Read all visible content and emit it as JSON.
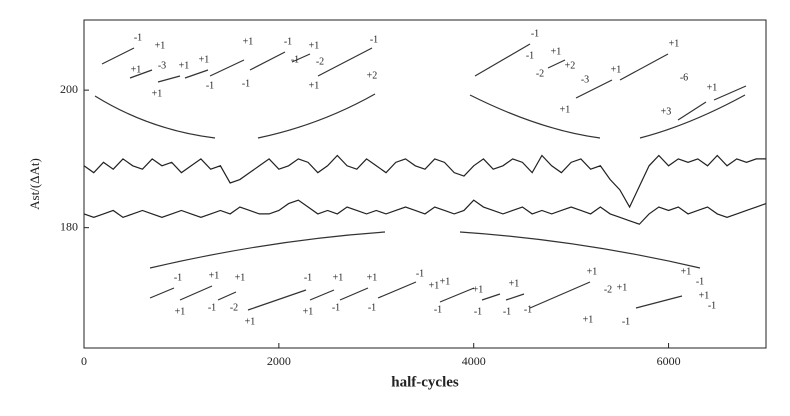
{
  "chart_data": {
    "type": "line",
    "xlabel": "half-cycles",
    "ylabel": "Ast/(ΔAt)",
    "xlim": [
      0,
      7000
    ],
    "ylim": [
      162.5,
      210.2
    ],
    "xticks": [
      0,
      2000,
      4000,
      6000
    ],
    "yticks": [
      180,
      200
    ],
    "x": [
      0,
      100,
      200,
      300,
      400,
      500,
      600,
      700,
      800,
      900,
      1000,
      1100,
      1200,
      1300,
      1400,
      1500,
      1600,
      1700,
      1800,
      1900,
      2000,
      2100,
      2200,
      2300,
      2400,
      2500,
      2600,
      2700,
      2800,
      2900,
      3000,
      3100,
      3200,
      3300,
      3400,
      3500,
      3600,
      3700,
      3800,
      3900,
      4000,
      4100,
      4200,
      4300,
      4400,
      4500,
      4600,
      4700,
      4800,
      4900,
      5000,
      5100,
      5200,
      5300,
      5400,
      5500,
      5600,
      5700,
      5800,
      5900,
      6000,
      6100,
      6200,
      6300,
      6400,
      6500,
      6600,
      6700,
      6800,
      6900,
      7000
    ],
    "series": [
      {
        "color": "#222222",
        "values": [
          189,
          188,
          189.5,
          188.5,
          190,
          189,
          188.5,
          190,
          189,
          189.5,
          188,
          189,
          190,
          188.5,
          189,
          186.5,
          187,
          188,
          189,
          190,
          188.5,
          189,
          190,
          189.5,
          188,
          189,
          190.5,
          189,
          188.5,
          190,
          189,
          188,
          189.5,
          190,
          189,
          188.5,
          190,
          189.5,
          188,
          187.5,
          189,
          190,
          188.5,
          189,
          190,
          189.5,
          188,
          190.5,
          189,
          188,
          189.5,
          190,
          188.5,
          189,
          187,
          185.5,
          183,
          186,
          189,
          190.5,
          189,
          190,
          189.5,
          190,
          189,
          190.5,
          189,
          190,
          189.5,
          190,
          190
        ]
      },
      {
        "color": "#222222",
        "values": [
          182,
          181.5,
          182,
          182.5,
          181.5,
          182,
          182.5,
          182,
          181.5,
          182,
          182.5,
          182,
          181.5,
          182,
          182.5,
          182,
          183,
          182.5,
          182,
          182,
          182.5,
          183.5,
          184,
          183,
          182,
          182.5,
          182,
          183,
          182.5,
          182,
          182.5,
          182,
          182.5,
          183,
          182.5,
          182,
          183,
          182.5,
          182,
          182.5,
          184,
          183,
          182.5,
          182,
          182.5,
          183,
          182,
          182.5,
          182,
          182.5,
          183,
          182.5,
          182,
          183,
          182,
          181.5,
          181,
          180.5,
          182,
          183,
          182.5,
          183,
          182,
          182.5,
          183,
          182,
          181.5,
          182,
          182.5,
          183,
          183.5
        ]
      }
    ],
    "annotations": [
      "-1",
      "+1",
      "+1",
      "-3",
      "+1",
      "+1",
      "+1",
      "-1",
      "+1",
      "-1",
      "-1",
      "+1",
      "-1",
      "-2",
      "+1",
      "-1",
      "+2",
      "-1",
      "-1",
      "+1",
      "-2",
      "+2",
      "-3",
      "+1",
      "+1",
      "+1",
      "-6",
      "+1",
      "+3",
      "-1",
      "+1",
      "+1",
      "-1",
      "+1",
      "-2",
      "+1",
      "-1",
      "+1",
      "+1",
      "-1",
      "+1",
      "-1",
      "-1",
      "+1",
      "+1",
      "-1",
      "-1",
      "+1",
      "-1",
      "+1",
      "-1",
      "+1",
      "-2",
      "+1",
      "+1",
      "-1",
      "+1",
      "-1",
      "+1",
      "-1"
    ]
  }
}
